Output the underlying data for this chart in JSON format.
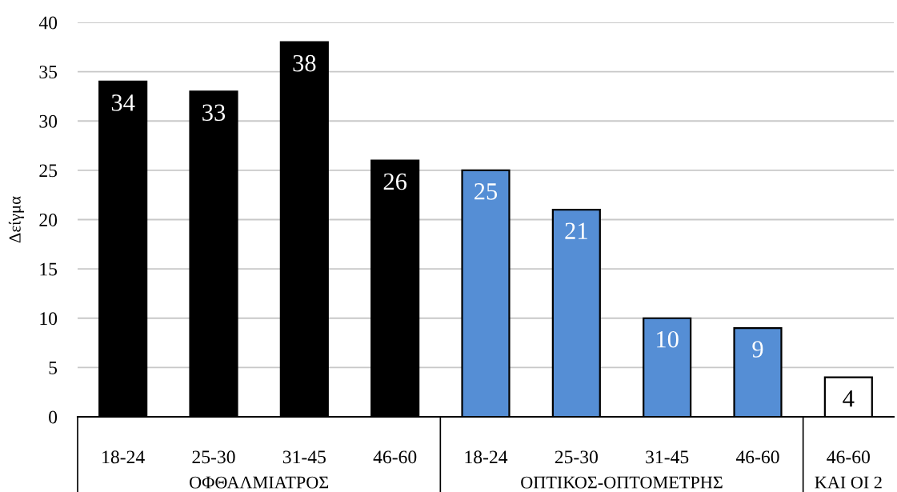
{
  "chart_data": {
    "type": "bar",
    "ylabel": "Δείγμα",
    "categories": [
      "18-24",
      "25-30",
      "31-45",
      "46-60",
      "18-24",
      "25-30",
      "31-45",
      "46-60",
      "46-60"
    ],
    "values": [
      34,
      33,
      38,
      26,
      25,
      21,
      10,
      9,
      4
    ],
    "colors": [
      "#000000",
      "#000000",
      "#000000",
      "#000000",
      "#558ed5",
      "#558ed5",
      "#558ed5",
      "#558ed5",
      "#ffffff"
    ],
    "annotations": [
      "ΟΦΘΑΛΜΙΑΤΡΟΣ",
      "ΟΠΤΙΚΟΣ-ΟΠΤΟΜΕΤΡΗΣ",
      "ΚΑΙ ΟΙ 2"
    ],
    "ylim": [
      0,
      40
    ],
    "yticks": [
      0,
      5,
      10,
      15,
      20,
      25,
      30,
      35,
      40
    ],
    "grid": "y",
    "data_labels": true
  }
}
